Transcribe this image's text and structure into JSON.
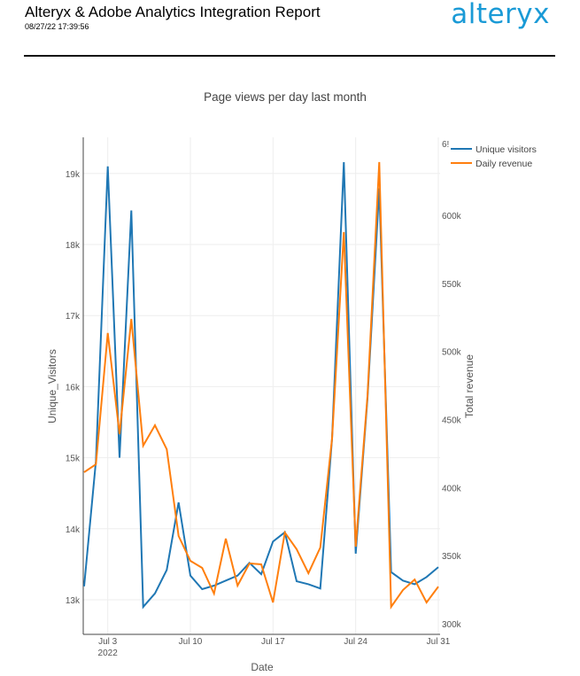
{
  "header": {
    "title": "Alteryx & Adobe Analytics Integration Report",
    "timestamp": "08/27/22 17:39:56",
    "logo_text": "alteryx",
    "logo_color": "#1a9ad6"
  },
  "chart_data": {
    "type": "line",
    "title": "Page views per day last month",
    "xlabel": "Date",
    "ylabel": "Unique_Visitors",
    "y2label": "Total revenue",
    "x_ticks": [
      "Jul 3",
      "Jul 10",
      "Jul 17",
      "Jul 24",
      "Jul 31"
    ],
    "x_tick_sublabel": "2022",
    "x": [
      "2022-07-01",
      "2022-07-02",
      "2022-07-03",
      "2022-07-04",
      "2022-07-05",
      "2022-07-06",
      "2022-07-07",
      "2022-07-08",
      "2022-07-09",
      "2022-07-10",
      "2022-07-11",
      "2022-07-12",
      "2022-07-13",
      "2022-07-14",
      "2022-07-15",
      "2022-07-16",
      "2022-07-17",
      "2022-07-18",
      "2022-07-19",
      "2022-07-20",
      "2022-07-21",
      "2022-07-22",
      "2022-07-23",
      "2022-07-24",
      "2022-07-25",
      "2022-07-26",
      "2022-07-27",
      "2022-07-28",
      "2022-07-29",
      "2022-07-30",
      "2022-07-31"
    ],
    "y_ticks": [
      "13k",
      "14k",
      "15k",
      "16k",
      "17k",
      "18k",
      "19k"
    ],
    "y2_ticks": [
      "300k",
      "350k",
      "400k",
      "450k",
      "500k",
      "550k",
      "600k",
      "6!"
    ],
    "ylim": [
      12600,
      19600
    ],
    "y2lim": [
      297000,
      660000
    ],
    "grid": true,
    "legend_position": "top-right",
    "series": [
      {
        "name": "Unique visitors",
        "axis": "y",
        "color": "#1f77b4",
        "values": [
          13190,
          14950,
          19100,
          15000,
          18480,
          12900,
          13090,
          13420,
          14370,
          13340,
          13150,
          13200,
          13270,
          13340,
          13520,
          13360,
          13820,
          13950,
          13260,
          13220,
          13160,
          15270,
          19160,
          13650,
          15830,
          18790,
          13390,
          13270,
          13220,
          13320,
          13460
        ]
      },
      {
        "name": "Daily revenue",
        "axis": "y2",
        "color": "#ff7f0e",
        "values": [
          411300,
          417100,
          513500,
          439300,
          523900,
          430800,
          445800,
          428200,
          364400,
          346200,
          341000,
          322100,
          362500,
          328000,
          344300,
          343600,
          315600,
          367000,
          354700,
          337100,
          356000,
          436000,
          587700,
          356600,
          467300,
          639100,
          312400,
          324700,
          332500,
          315600,
          327300
        ]
      }
    ]
  }
}
